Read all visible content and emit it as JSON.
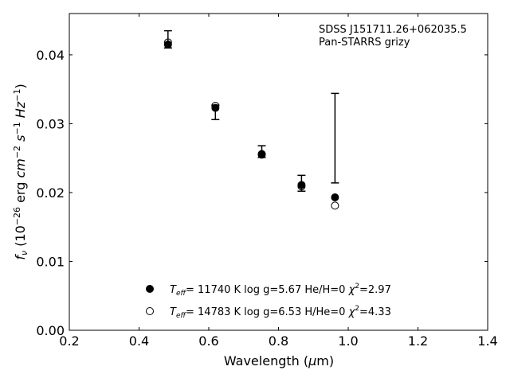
{
  "chart_data": {
    "type": "scatter",
    "xlabel": "Wavelength (μm)",
    "ylabel": "f_ν (10^−26 erg cm^−2 s^−1 Hz^−1)",
    "xlim": [
      0.2,
      1.4
    ],
    "ylim": [
      0.0,
      0.046
    ],
    "xticks": [
      0.2,
      0.4,
      0.6,
      0.8,
      1.0,
      1.2,
      1.4
    ],
    "xtick_labels": [
      "0.2",
      "0.4",
      "0.6",
      "0.8",
      "1.0",
      "1.2",
      "1.4"
    ],
    "yticks": [
      0.0,
      0.01,
      0.02,
      0.03,
      0.04
    ],
    "ytick_labels": [
      "0.00",
      "0.01",
      "0.02",
      "0.03",
      "0.04"
    ],
    "grid": false,
    "annotation": [
      "SDSS J151711.26+062035.5",
      "Pan-STARRS grizy"
    ],
    "observed": {
      "x": [
        0.483,
        0.619,
        0.752,
        0.866,
        0.962
      ],
      "y": [
        0.0422,
        0.0325,
        0.0259,
        0.0213,
        0.0278
      ],
      "yerr_low": [
        0.041,
        0.0306,
        0.0251,
        0.0202,
        0.0214
      ],
      "yerr_high": [
        0.0435,
        0.0327,
        0.0268,
        0.0225,
        0.0344
      ]
    },
    "series": [
      {
        "marker": "filled-circle",
        "label": {
          "teff_sym": "T",
          "teff_sub": "eff",
          "rest": "= 11740 K  log g=5.67  He/H=0",
          "chi_sym": "χ",
          "chi_sup": "2",
          "chi_val": "=2.97"
        },
        "x": [
          0.483,
          0.619,
          0.752,
          0.866,
          0.962
        ],
        "y": [
          0.0415,
          0.0323,
          0.0255,
          0.0211,
          0.0193
        ]
      },
      {
        "marker": "open-circle",
        "label": {
          "teff_sym": "T",
          "teff_sub": "eff",
          "rest": "= 14783 K  log g=6.53  H/He=0",
          "chi_sym": "χ",
          "chi_sup": "2",
          "chi_val": "=4.33"
        },
        "x": [
          0.483,
          0.619,
          0.752,
          0.866,
          0.962
        ],
        "y": [
          0.0418,
          0.0326,
          0.0256,
          0.0209,
          0.0181
        ]
      }
    ],
    "legend_position": "lower-center"
  }
}
